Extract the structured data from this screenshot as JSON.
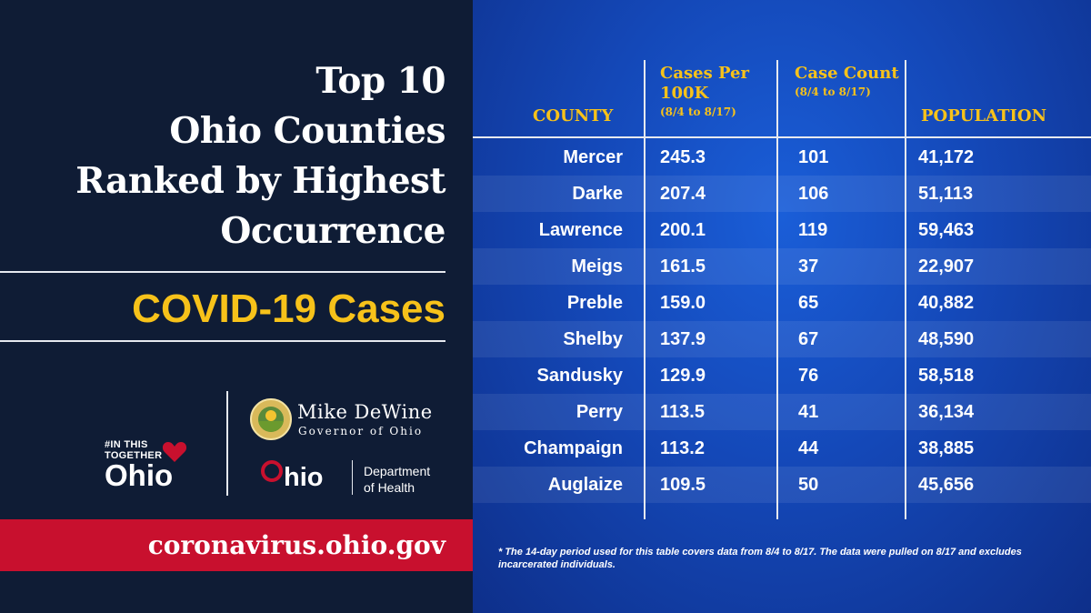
{
  "left": {
    "title_lines": [
      "Top 10",
      "Ohio Counties",
      "Ranked by Highest",
      "Occurrence"
    ],
    "subtitle": "COVID-19 Cases",
    "in_this_together_small": "#IN THIS",
    "in_this_together_small2": "TOGETHER",
    "in_this_together_big": "Ohio",
    "governor_name": "Mike DeWine",
    "governor_title": "Governor of Ohio",
    "ohio_wordmark": "hio",
    "department_line1": "Department",
    "department_line2": "of Health",
    "url": "coronavirus.ohio.gov",
    "colors": {
      "gold": "#f7c21a",
      "red": "#c8102e",
      "navy": "#0f1c35"
    }
  },
  "table": {
    "headers": {
      "county": "COUNTY",
      "rate_main": "Cases Per 100K",
      "rate_sub": "(8/4 to 8/17)",
      "count_main": "Case Count",
      "count_sub": "(8/4 to 8/17)",
      "population": "POPULATION"
    },
    "footnote": "* The 14-day period used for this table covers data from 8/4 to 8/17. The data were pulled on 8/17 and excludes incarcerated individuals."
  },
  "chart_data": {
    "type": "table",
    "title": "Top 10 Ohio Counties Ranked by Highest Occurrence",
    "subtitle": "COVID-19 Cases",
    "columns": [
      "COUNTY",
      "Cases Per 100K (8/4 to 8/17)",
      "Case Count (8/4 to 8/17)",
      "POPULATION"
    ],
    "rows": [
      {
        "county": "Mercer",
        "rate": "245.3",
        "count": "101",
        "population": "41,172"
      },
      {
        "county": "Darke",
        "rate": "207.4",
        "count": "106",
        "population": "51,113"
      },
      {
        "county": "Lawrence",
        "rate": "200.1",
        "count": "119",
        "population": "59,463"
      },
      {
        "county": "Meigs",
        "rate": "161.5",
        "count": "37",
        "population": "22,907"
      },
      {
        "county": "Preble",
        "rate": "159.0",
        "count": "65",
        "population": "40,882"
      },
      {
        "county": "Shelby",
        "rate": "137.9",
        "count": "67",
        "population": "48,590"
      },
      {
        "county": "Sandusky",
        "rate": "129.9",
        "count": "76",
        "population": "58,518"
      },
      {
        "county": "Perry",
        "rate": "113.5",
        "count": "41",
        "population": "36,134"
      },
      {
        "county": "Champaign",
        "rate": "113.2",
        "count": "44",
        "population": "38,885"
      },
      {
        "county": "Auglaize",
        "rate": "109.5",
        "count": "50",
        "population": "45,656"
      }
    ]
  }
}
